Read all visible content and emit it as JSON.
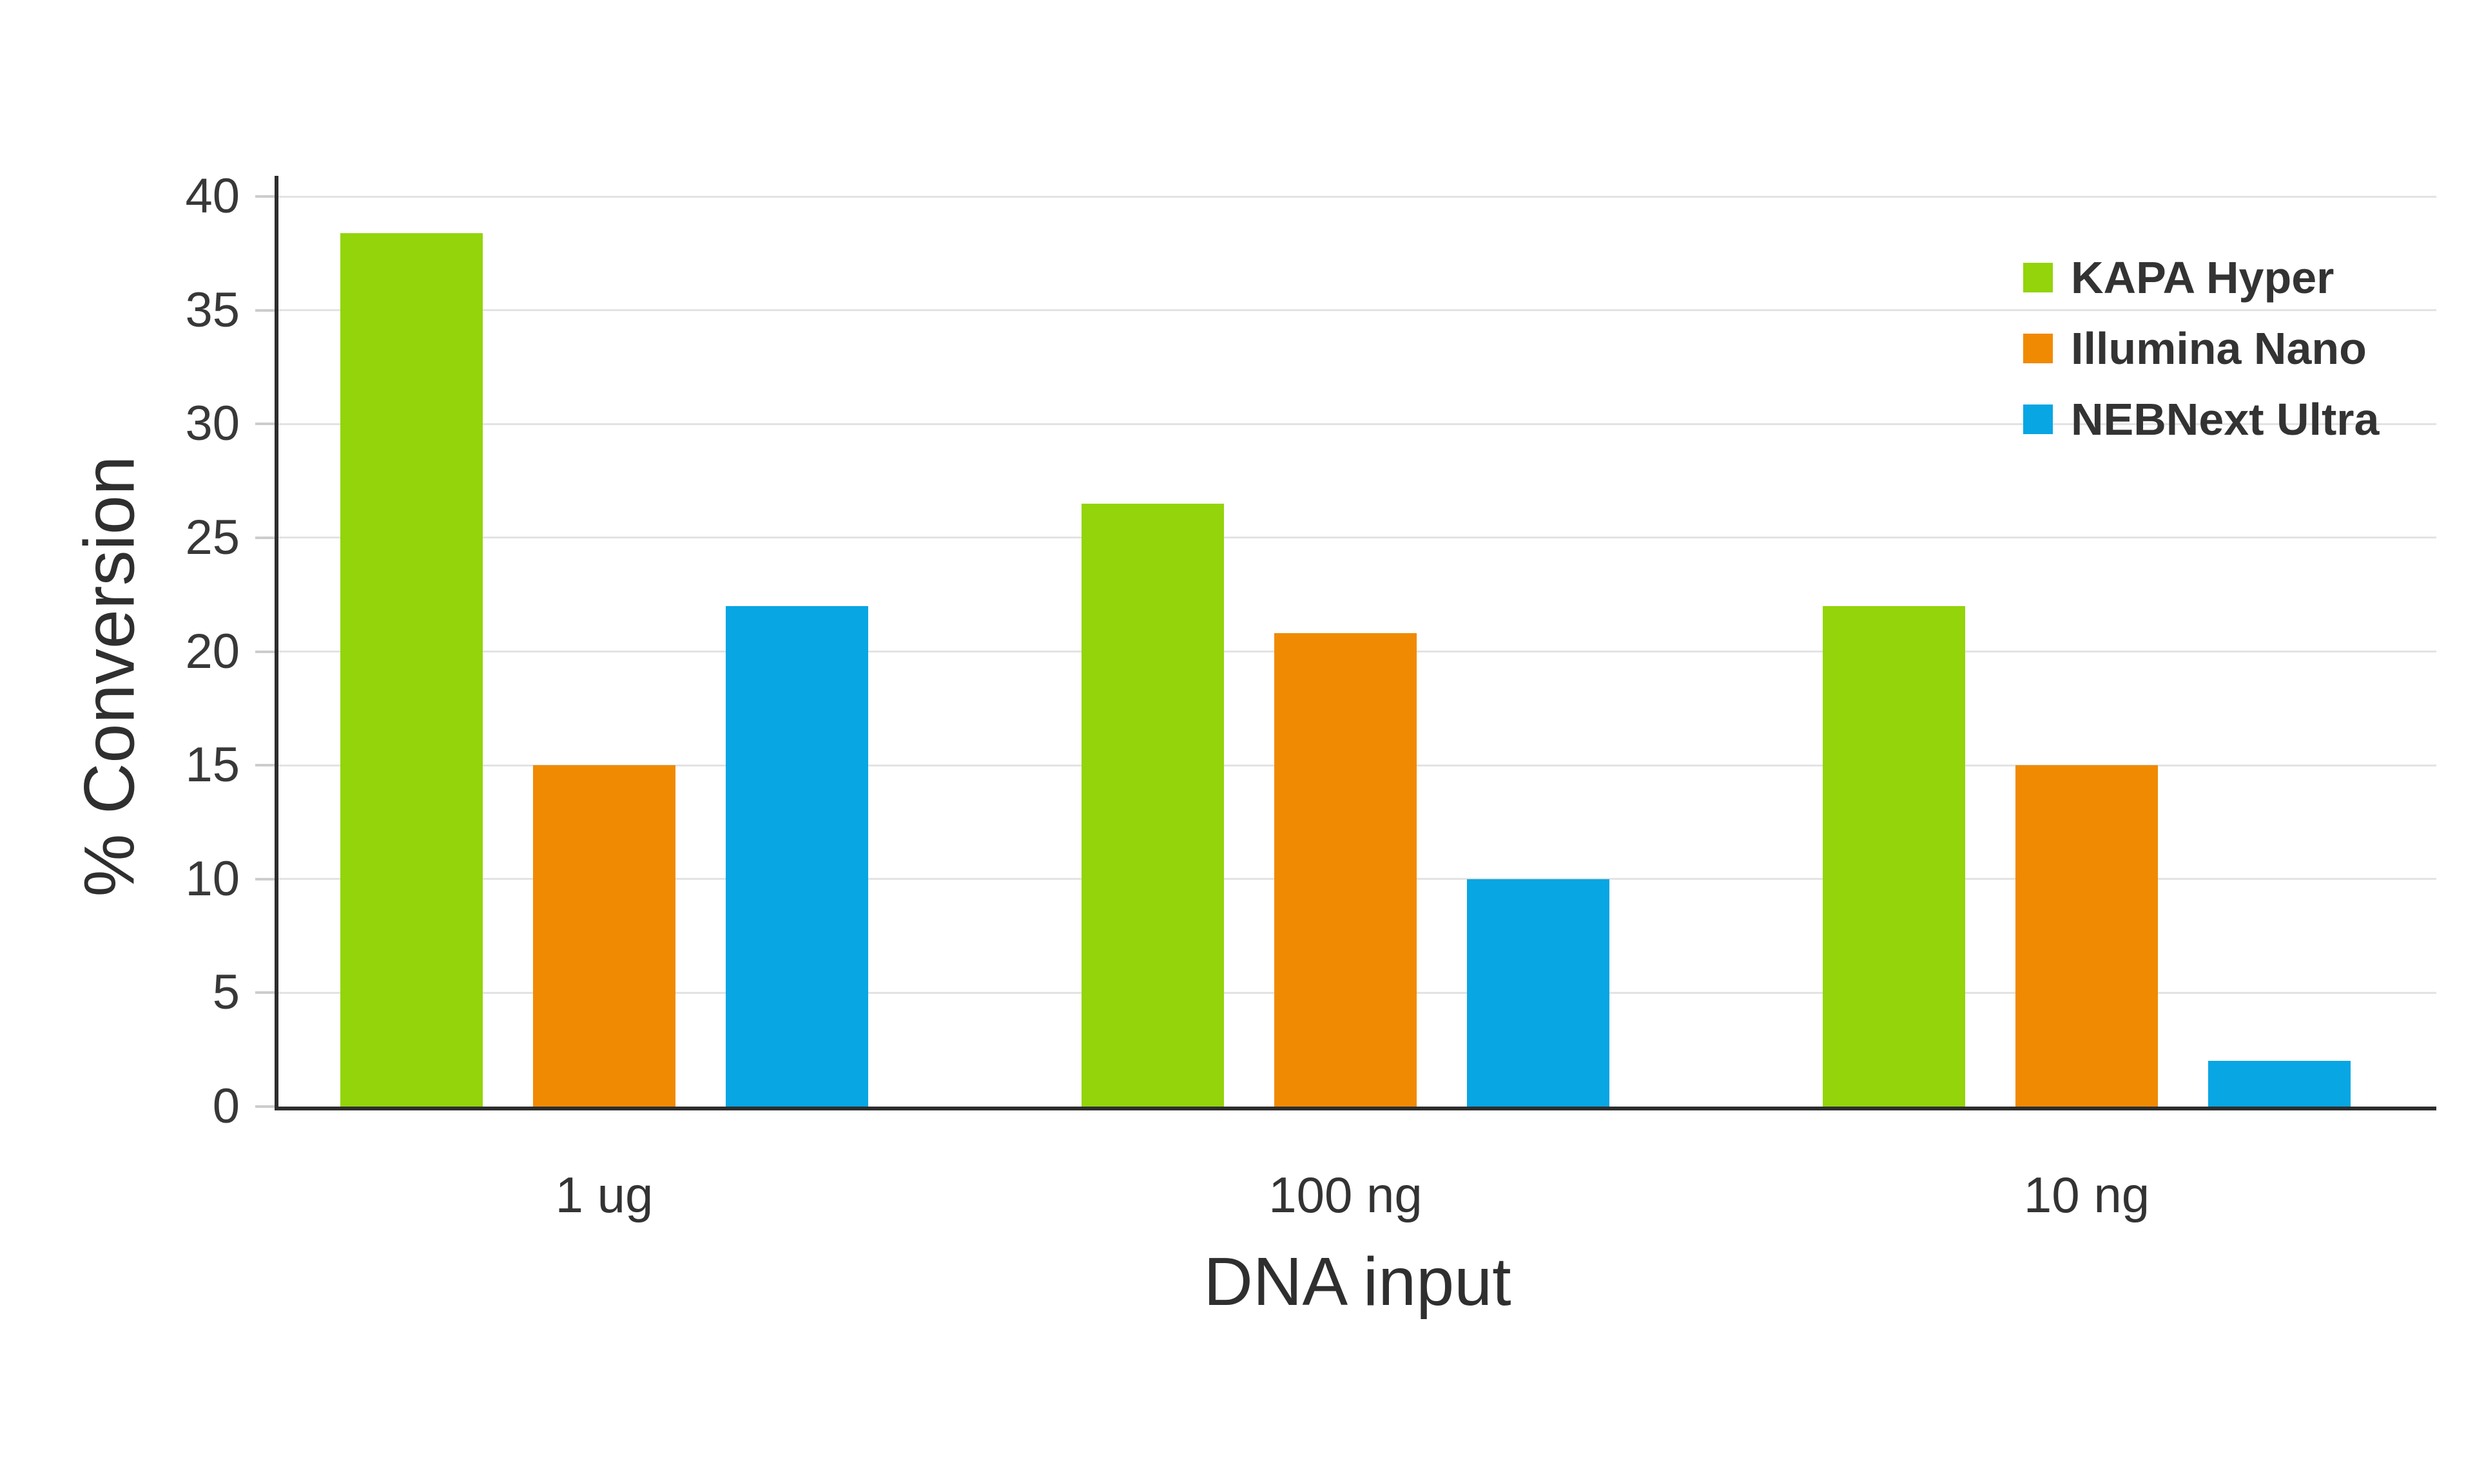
{
  "chart_data": {
    "type": "bar",
    "title": "",
    "xlabel": "DNA input",
    "ylabel": "% Conversion",
    "categories": [
      "1 ug",
      "100 ng",
      "10 ng"
    ],
    "series": [
      {
        "name": "KAPA Hyper",
        "color": "#93d40b",
        "values": [
          38.4,
          26.5,
          22
        ]
      },
      {
        "name": "Illumina Nano",
        "color": "#f08a02",
        "values": [
          15,
          20.8,
          15
        ]
      },
      {
        "name": "NEBNext Ultra",
        "color": "#08a6e3",
        "values": [
          22,
          10,
          2
        ]
      }
    ],
    "ylim": [
      0,
      40
    ],
    "ytick_step": 5,
    "grid": true,
    "legend_position": "top-right",
    "colors": {
      "axis_line": "#2d2d2d",
      "gridline": "#e3e3e3",
      "tick_text": "#383838",
      "background": "#ffffff"
    }
  }
}
